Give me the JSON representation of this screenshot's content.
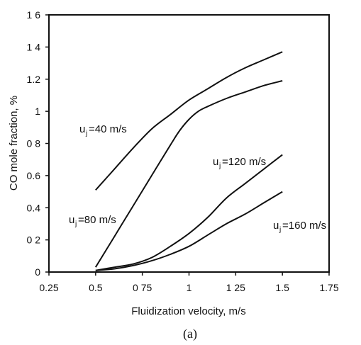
{
  "chart_data": {
    "type": "line",
    "xlabel": "Fluidization velocity, m/s",
    "ylabel": "CO mole fraction, %",
    "caption": "(a)",
    "xlim": [
      0.25,
      1.75
    ],
    "ylim": [
      0,
      1.6
    ],
    "x_ticks": [
      0.25,
      0.5,
      0.75,
      1,
      1.25,
      1.5,
      1.75
    ],
    "x_tick_labels": [
      "0.25",
      "0.5",
      "0 75",
      "1",
      "1 25",
      "1.5",
      "1.75"
    ],
    "y_ticks": [
      0,
      0.2,
      0.4,
      0.6,
      0.8,
      1,
      1.2,
      1.4,
      1.6
    ],
    "y_tick_labels": [
      "0",
      "0 2",
      "0.4",
      "0.6",
      "0 8",
      "1",
      "1.2",
      "1 4",
      "1 6"
    ],
    "grid": false,
    "series": [
      {
        "label_prefix": "u",
        "label_sub": "j",
        "label_suffix": "=40 m/s",
        "x": [
          0.5,
          0.6,
          0.7,
          0.8,
          0.9,
          1.0,
          1.1,
          1.2,
          1.3,
          1.4,
          1.5
        ],
        "y": [
          0.51,
          0.64,
          0.77,
          0.89,
          0.98,
          1.07,
          1.14,
          1.21,
          1.27,
          1.32,
          1.37
        ]
      },
      {
        "label_prefix": "u",
        "label_sub": "j",
        "label_suffix": "=80 m/s",
        "x": [
          0.5,
          0.6,
          0.7,
          0.8,
          0.9,
          0.95,
          1.0,
          1.05,
          1.1,
          1.2,
          1.3,
          1.4,
          1.5
        ],
        "y": [
          0.03,
          0.22,
          0.41,
          0.6,
          0.79,
          0.88,
          0.95,
          1.0,
          1.03,
          1.08,
          1.12,
          1.16,
          1.19
        ]
      },
      {
        "label_prefix": "u",
        "label_sub": "j",
        "label_suffix": "=120 m/s",
        "x": [
          0.5,
          0.6,
          0.7,
          0.8,
          0.9,
          1.0,
          1.1,
          1.2,
          1.3,
          1.4,
          1.5
        ],
        "y": [
          0.01,
          0.03,
          0.05,
          0.09,
          0.16,
          0.24,
          0.34,
          0.46,
          0.55,
          0.64,
          0.73
        ]
      },
      {
        "label_prefix": "u",
        "label_sub": "j",
        "label_suffix": "=160 m/s",
        "x": [
          0.5,
          0.6,
          0.7,
          0.8,
          0.9,
          1.0,
          1.1,
          1.2,
          1.3,
          1.4,
          1.5
        ],
        "y": [
          0.01,
          0.02,
          0.04,
          0.07,
          0.11,
          0.16,
          0.23,
          0.3,
          0.36,
          0.43,
          0.5
        ]
      }
    ]
  }
}
